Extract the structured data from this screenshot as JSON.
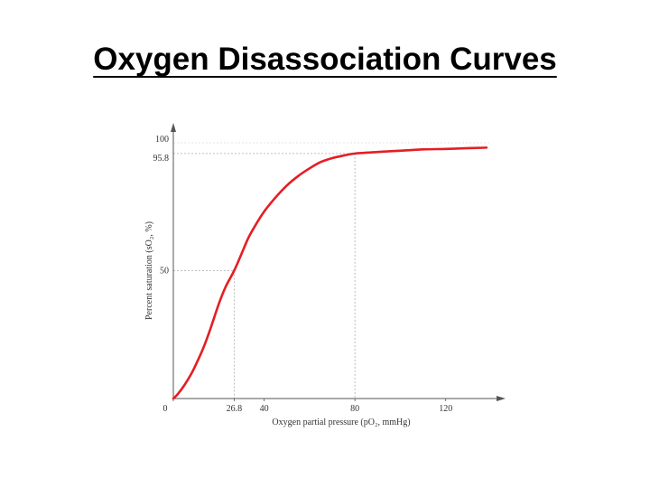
{
  "title": "Oxygen Disassociation Curves",
  "chart_data": {
    "type": "line",
    "xlabel": "Oxygen partial pressure (pO₂, mmHg)",
    "ylabel": "Percent saturation (sO₂, %)",
    "xlim": [
      0,
      140
    ],
    "ylim": [
      0,
      100
    ],
    "x_ticks": [
      0,
      26.8,
      40,
      80,
      120
    ],
    "x_tick_labels": [
      "0",
      "26.8",
      "40",
      "80",
      "120"
    ],
    "y_ticks": [
      50,
      95.8,
      100
    ],
    "y_tick_labels": [
      "50",
      "95.8",
      "100"
    ],
    "reference_points": [
      {
        "x": 26.8,
        "y": 50
      },
      {
        "x": 80,
        "y": 95.8
      }
    ],
    "series": [
      {
        "color": "#e31e24",
        "x": [
          0,
          2,
          5,
          8,
          10,
          13,
          16,
          20,
          23,
          26.8,
          30,
          33,
          36,
          40,
          45,
          50,
          55,
          60,
          65,
          70,
          75,
          80,
          90,
          100,
          110,
          120,
          130,
          138
        ],
        "y": [
          0,
          1.8,
          5.4,
          9.8,
          13.4,
          19.3,
          26.4,
          36.9,
          43.6,
          50,
          56.5,
          62.7,
          67.5,
          73.1,
          78.6,
          83.3,
          87,
          90,
          92.5,
          94,
          95,
          95.8,
          96.4,
          96.9,
          97.4,
          97.6,
          97.9,
          98.1
        ]
      }
    ]
  }
}
